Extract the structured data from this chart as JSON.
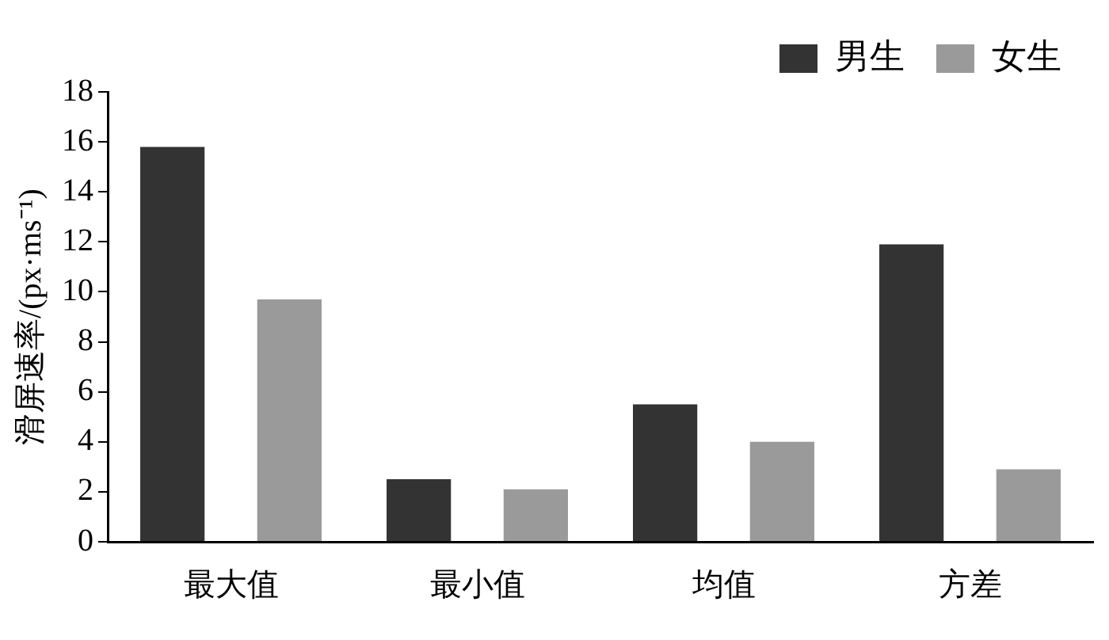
{
  "chart_data": {
    "type": "bar",
    "ylabel": "滑屏速率/(px·ms⁻¹)",
    "categories": [
      "最大值",
      "最小值",
      "均值",
      "方差"
    ],
    "series": [
      {
        "name": "男生",
        "color": "#333333",
        "values": [
          15.8,
          2.5,
          5.5,
          11.9
        ]
      },
      {
        "name": "女生",
        "color": "#9a9a9a",
        "values": [
          9.7,
          2.1,
          4.0,
          2.9
        ]
      }
    ],
    "ylim": [
      0,
      18
    ],
    "yticks": [
      0,
      2,
      4,
      6,
      8,
      10,
      12,
      14,
      16,
      18
    ],
    "grid": false,
    "legend": "top right"
  }
}
